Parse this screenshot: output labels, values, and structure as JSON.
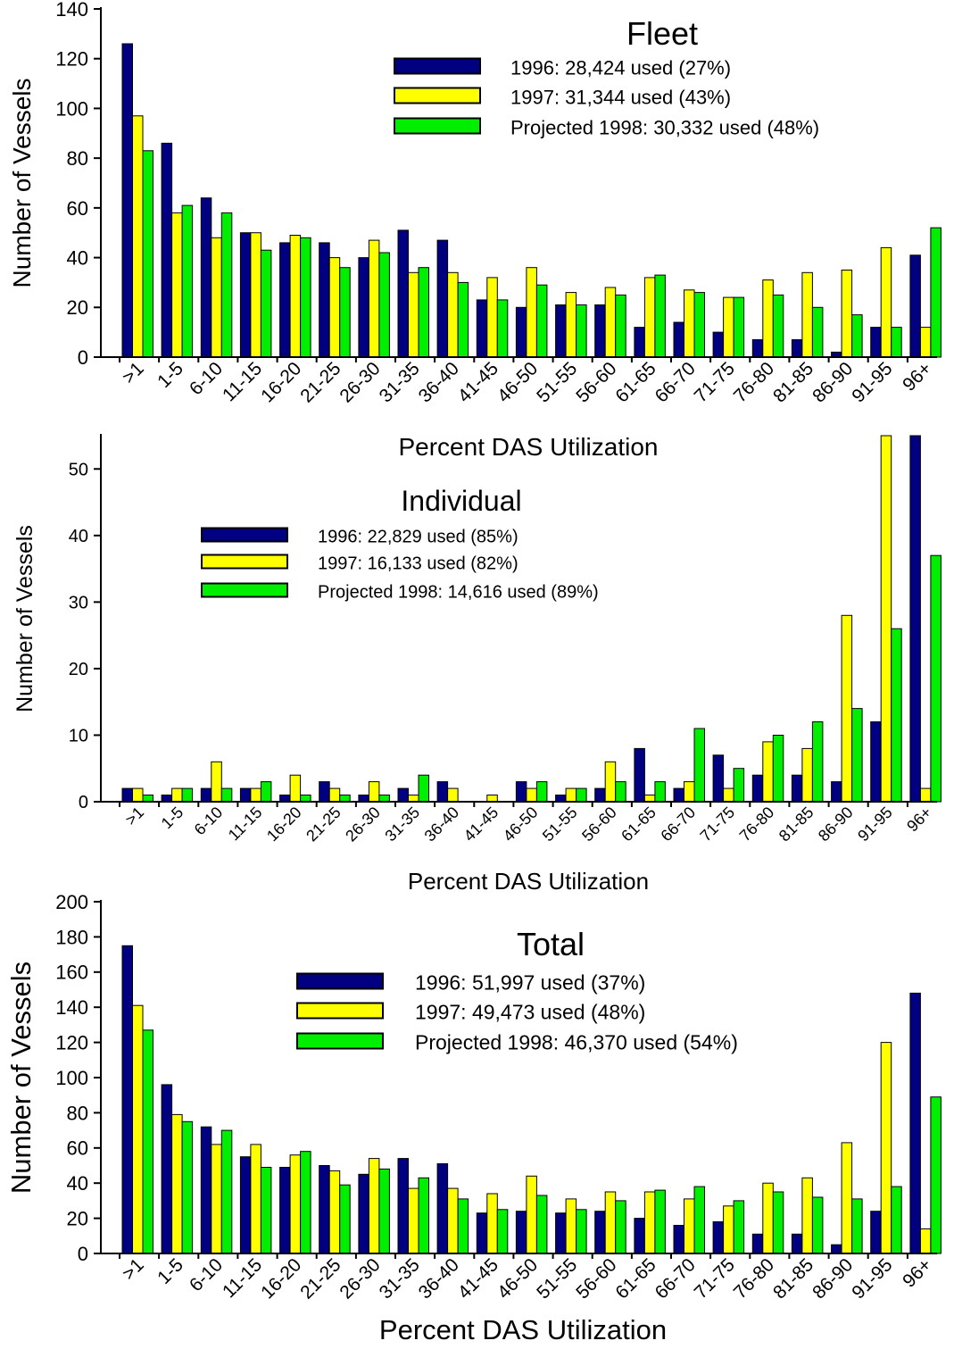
{
  "colors": {
    "1996": "#000080",
    "1997": "#ffff00",
    "1998": "#00ee00"
  },
  "chart_data": [
    {
      "type": "bar",
      "title": "Fleet",
      "xlabel": "Percent DAS Utilization",
      "ylabel": "Number of Vessels",
      "ylim": [
        0,
        140
      ],
      "yticks": [
        0,
        20,
        40,
        60,
        80,
        100,
        120,
        140
      ],
      "legend_placement": "top-right",
      "categories": [
        ">1",
        "1-5",
        "6-10",
        "11-15",
        "16-20",
        "21-25",
        "26-30",
        "31-35",
        "36-40",
        "41-45",
        "46-50",
        "51-55",
        "56-60",
        "61-65",
        "66-70",
        "71-75",
        "76-80",
        "81-85",
        "86-90",
        "91-95",
        "96+"
      ],
      "series": [
        {
          "name": "1996: 28,424 used (27%)",
          "values": [
            126,
            86,
            64,
            50,
            46,
            46,
            40,
            51,
            47,
            23,
            20,
            21,
            21,
            12,
            14,
            10,
            7,
            7,
            2,
            12,
            41
          ]
        },
        {
          "name": "1997: 31,344 used (43%)",
          "values": [
            97,
            58,
            48,
            50,
            49,
            40,
            47,
            34,
            34,
            32,
            36,
            26,
            28,
            32,
            27,
            24,
            31,
            34,
            35,
            44,
            12
          ]
        },
        {
          "name": "Projected 1998: 30,332 used (48%)",
          "values": [
            83,
            61,
            58,
            43,
            48,
            36,
            42,
            36,
            30,
            23,
            29,
            21,
            25,
            33,
            26,
            24,
            25,
            20,
            17,
            12,
            52
          ]
        }
      ]
    },
    {
      "type": "bar",
      "title": "Individual",
      "xlabel": "Percent DAS Utilization",
      "ylabel": "Number of Vessels",
      "ylim": [
        0,
        55
      ],
      "yticks": [
        0,
        10,
        20,
        30,
        40,
        50
      ],
      "legend_placement": "top-center",
      "categories": [
        ">1",
        "1-5",
        "6-10",
        "11-15",
        "16-20",
        "21-25",
        "26-30",
        "31-35",
        "36-40",
        "41-45",
        "46-50",
        "51-55",
        "56-60",
        "61-65",
        "66-70",
        "71-75",
        "76-80",
        "81-85",
        "86-90",
        "91-95",
        "96+"
      ],
      "series": [
        {
          "name": "1996: 22,829 used (85%)",
          "values": [
            2,
            1,
            2,
            2,
            1,
            3,
            1,
            2,
            3,
            0,
            3,
            1,
            2,
            8,
            2,
            7,
            4,
            4,
            3,
            12,
            55
          ]
        },
        {
          "name": "1997: 16,133 used (82%)",
          "values": [
            2,
            2,
            6,
            2,
            4,
            2,
            3,
            1,
            2,
            1,
            2,
            2,
            6,
            1,
            3,
            2,
            9,
            8,
            28,
            55,
            2
          ]
        },
        {
          "name": "Projected 1998: 14,616 used (89%)",
          "values": [
            1,
            2,
            2,
            3,
            1,
            1,
            1,
            4,
            0,
            0,
            3,
            2,
            3,
            3,
            11,
            5,
            10,
            12,
            14,
            26,
            37
          ]
        }
      ]
    },
    {
      "type": "bar",
      "title": "Total",
      "xlabel": "Percent DAS Utilization",
      "ylabel": "Number of Vessels",
      "ylim": [
        0,
        200
      ],
      "yticks": [
        0,
        20,
        40,
        60,
        80,
        100,
        120,
        140,
        160,
        180,
        200
      ],
      "legend_placement": "top-center",
      "categories": [
        ">1",
        "1-5",
        "6-10",
        "11-15",
        "16-20",
        "21-25",
        "26-30",
        "31-35",
        "36-40",
        "41-45",
        "46-50",
        "51-55",
        "56-60",
        "61-65",
        "66-70",
        "71-75",
        "76-80",
        "81-85",
        "86-90",
        "91-95",
        "96+"
      ],
      "series": [
        {
          "name": "1996: 51,997 used (37%)",
          "values": [
            175,
            96,
            72,
            55,
            49,
            50,
            45,
            54,
            51,
            23,
            24,
            23,
            24,
            20,
            16,
            18,
            11,
            11,
            5,
            24,
            148
          ]
        },
        {
          "name": "1997: 49,473 used (48%)",
          "values": [
            141,
            79,
            62,
            62,
            56,
            47,
            54,
            37,
            37,
            34,
            44,
            31,
            35,
            35,
            31,
            27,
            40,
            43,
            63,
            120,
            14
          ]
        },
        {
          "name": "Projected 1998: 46,370 used (54%)",
          "values": [
            127,
            75,
            70,
            49,
            58,
            39,
            48,
            43,
            31,
            25,
            33,
            25,
            30,
            36,
            38,
            30,
            35,
            32,
            31,
            38,
            89
          ]
        }
      ]
    }
  ]
}
